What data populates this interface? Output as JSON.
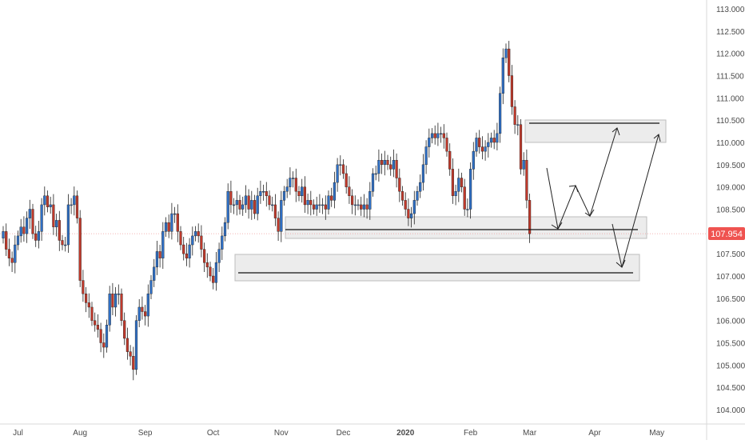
{
  "chart_data": {
    "type": "candlestick",
    "symbol_last_price": "107.954",
    "colors": {
      "up": "#2f6fc4",
      "down": "#c0392b",
      "wick": "#222222",
      "zone": "#e6e6e6",
      "zone_border": "#bdbdbd",
      "price_label_bg": "#ef5350",
      "price_line": "#ef9a9a"
    },
    "y_axis": {
      "range": [
        103.7,
        113.25
      ],
      "ticks": [
        "113.000",
        "112.500",
        "112.000",
        "111.500",
        "111.000",
        "110.500",
        "110.000",
        "109.500",
        "109.000",
        "108.500",
        "108.000",
        "107.500",
        "107.000",
        "106.500",
        "106.000",
        "105.500",
        "105.000",
        "104.500",
        "104.000"
      ]
    },
    "x_axis": {
      "labels": [
        {
          "text": "Jul",
          "bar": 5
        },
        {
          "text": "Aug",
          "bar": 26
        },
        {
          "text": "Sep",
          "bar": 48
        },
        {
          "text": "Oct",
          "bar": 71
        },
        {
          "text": "Nov",
          "bar": 94
        },
        {
          "text": "Dec",
          "bar": 115
        },
        {
          "text": "2020",
          "bar": 136
        },
        {
          "text": "Feb",
          "bar": 158
        },
        {
          "text": "Mar",
          "bar": 178
        },
        {
          "text": "Apr",
          "bar": 200
        },
        {
          "text": "May",
          "bar": 221
        }
      ]
    },
    "closes": [
      108.0,
      107.6,
      107.4,
      107.3,
      107.7,
      107.9,
      108.1,
      107.95,
      108.3,
      108.5,
      107.95,
      107.8,
      108.0,
      108.6,
      108.8,
      108.55,
      108.6,
      108.1,
      108.25,
      107.8,
      107.7,
      107.7,
      108.6,
      108.6,
      108.8,
      108.3,
      106.9,
      106.6,
      106.4,
      106.3,
      106.0,
      105.9,
      105.8,
      105.5,
      105.4,
      105.9,
      106.6,
      106.3,
      106.6,
      106.6,
      106.0,
      105.6,
      105.3,
      105.2,
      104.9,
      106.0,
      106.3,
      106.2,
      106.1,
      106.6,
      106.9,
      107.2,
      107.55,
      107.4,
      108.0,
      108.2,
      108.0,
      108.4,
      108.4,
      108.0,
      107.7,
      107.5,
      107.4,
      107.7,
      107.9,
      108.0,
      107.9,
      107.6,
      107.3,
      107.2,
      107.0,
      106.85,
      107.3,
      107.6,
      107.9,
      108.2,
      108.9,
      108.6,
      108.6,
      108.7,
      108.5,
      108.6,
      108.8,
      108.5,
      108.7,
      108.4,
      108.8,
      108.9,
      108.9,
      108.8,
      108.6,
      108.6,
      108.3,
      108.0,
      108.7,
      108.9,
      109.0,
      109.2,
      109.2,
      108.9,
      108.8,
      109.0,
      108.6,
      108.7,
      108.6,
      108.5,
      108.6,
      108.6,
      108.6,
      108.5,
      108.8,
      108.7,
      109.1,
      109.5,
      109.5,
      109.3,
      109.0,
      108.8,
      108.6,
      108.6,
      108.6,
      108.5,
      108.6,
      108.5,
      108.9,
      109.3,
      109.3,
      109.6,
      109.5,
      109.6,
      109.5,
      109.4,
      109.6,
      109.2,
      108.9,
      108.7,
      108.5,
      108.3,
      108.4,
      108.7,
      108.9,
      109.1,
      109.5,
      109.9,
      110.1,
      110.2,
      110.1,
      110.2,
      110.2,
      110.1,
      109.8,
      109.4,
      108.8,
      108.9,
      109.2,
      109.0,
      108.5,
      108.5,
      109.4,
      109.8,
      110.1,
      109.9,
      109.8,
      109.9,
      110.0,
      110.1,
      110.0,
      110.2,
      111.1,
      111.9,
      112.1,
      111.5,
      110.8,
      110.4,
      110.4,
      109.4,
      109.6,
      108.7,
      107.95
    ]
  }
}
